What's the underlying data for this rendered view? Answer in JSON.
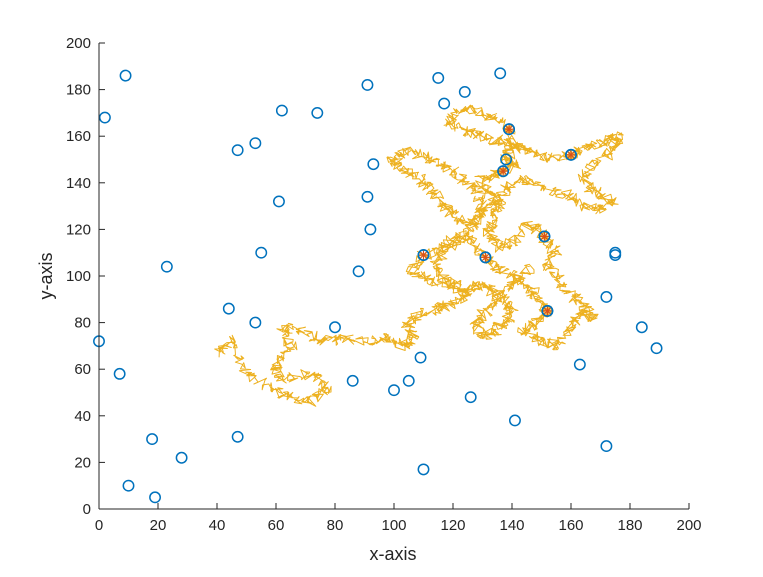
{
  "chart_data": {
    "type": "scatter",
    "xlabel": "x-axis",
    "ylabel": "y-axis",
    "xlim": [
      0,
      200
    ],
    "ylim": [
      0,
      200
    ],
    "xticks": [
      0,
      20,
      40,
      60,
      80,
      100,
      120,
      140,
      160,
      180,
      200
    ],
    "yticks": [
      0,
      20,
      40,
      60,
      80,
      100,
      120,
      140,
      160,
      180,
      200
    ],
    "grid": false,
    "colors": {
      "points": "#0072BD",
      "path": "#EDB120",
      "visited_marker": "#D95319",
      "axes": "#262626"
    },
    "points": [
      {
        "x": 2,
        "y": 168
      },
      {
        "x": 9,
        "y": 186
      },
      {
        "x": 0,
        "y": 72
      },
      {
        "x": 7,
        "y": 58
      },
      {
        "x": 10,
        "y": 10
      },
      {
        "x": 18,
        "y": 30
      },
      {
        "x": 19,
        "y": 5
      },
      {
        "x": 23,
        "y": 104
      },
      {
        "x": 28,
        "y": 22
      },
      {
        "x": 44,
        "y": 86
      },
      {
        "x": 47,
        "y": 31
      },
      {
        "x": 47,
        "y": 154
      },
      {
        "x": 53,
        "y": 157
      },
      {
        "x": 53,
        "y": 80
      },
      {
        "x": 55,
        "y": 110
      },
      {
        "x": 61,
        "y": 132
      },
      {
        "x": 62,
        "y": 171
      },
      {
        "x": 74,
        "y": 170
      },
      {
        "x": 80,
        "y": 78
      },
      {
        "x": 86,
        "y": 55
      },
      {
        "x": 88,
        "y": 102
      },
      {
        "x": 91,
        "y": 182
      },
      {
        "x": 91,
        "y": 134
      },
      {
        "x": 92,
        "y": 120
      },
      {
        "x": 93,
        "y": 148
      },
      {
        "x": 100,
        "y": 51
      },
      {
        "x": 105,
        "y": 55
      },
      {
        "x": 109,
        "y": 65
      },
      {
        "x": 110,
        "y": 17
      },
      {
        "x": 110,
        "y": 109
      },
      {
        "x": 115,
        "y": 185
      },
      {
        "x": 117,
        "y": 174
      },
      {
        "x": 124,
        "y": 179
      },
      {
        "x": 126,
        "y": 48
      },
      {
        "x": 131,
        "y": 108
      },
      {
        "x": 136,
        "y": 187
      },
      {
        "x": 137,
        "y": 145
      },
      {
        "x": 139,
        "y": 163
      },
      {
        "x": 138,
        "y": 150
      },
      {
        "x": 141,
        "y": 38
      },
      {
        "x": 151,
        "y": 117
      },
      {
        "x": 152,
        "y": 85
      },
      {
        "x": 160,
        "y": 152
      },
      {
        "x": 163,
        "y": 62
      },
      {
        "x": 172,
        "y": 27
      },
      {
        "x": 172,
        "y": 91
      },
      {
        "x": 175,
        "y": 109
      },
      {
        "x": 175,
        "y": 110
      },
      {
        "x": 184,
        "y": 78
      },
      {
        "x": 189,
        "y": 69
      }
    ],
    "visited": [
      {
        "x": 110,
        "y": 109
      },
      {
        "x": 131,
        "y": 108
      },
      {
        "x": 137,
        "y": 145
      },
      {
        "x": 139,
        "y": 163
      },
      {
        "x": 151,
        "y": 117
      },
      {
        "x": 152,
        "y": 85
      },
      {
        "x": 160,
        "y": 152
      }
    ],
    "path_waypoints": [
      [
        40,
        66
      ],
      [
        45,
        73
      ],
      [
        50,
        58
      ],
      [
        58,
        52
      ],
      [
        65,
        48
      ],
      [
        72,
        46
      ],
      [
        78,
        52
      ],
      [
        72,
        58
      ],
      [
        62,
        56
      ],
      [
        60,
        62
      ],
      [
        65,
        70
      ],
      [
        62,
        78
      ],
      [
        68,
        77
      ],
      [
        75,
        72
      ],
      [
        82,
        73
      ],
      [
        92,
        72
      ],
      [
        98,
        74
      ],
      [
        103,
        70
      ],
      [
        107,
        74
      ],
      [
        104,
        80
      ],
      [
        110,
        84
      ],
      [
        115,
        86
      ],
      [
        120,
        88
      ],
      [
        125,
        92
      ],
      [
        120,
        96
      ],
      [
        112,
        98
      ],
      [
        106,
        102
      ],
      [
        110,
        109
      ],
      [
        117,
        112
      ],
      [
        122,
        118
      ],
      [
        127,
        114
      ],
      [
        131,
        108
      ],
      [
        134,
        104
      ],
      [
        140,
        100
      ],
      [
        145,
        96
      ],
      [
        148,
        92
      ],
      [
        152,
        85
      ],
      [
        148,
        80
      ],
      [
        144,
        76
      ],
      [
        150,
        72
      ],
      [
        156,
        70
      ],
      [
        160,
        78
      ],
      [
        163,
        84
      ],
      [
        168,
        82
      ],
      [
        164,
        88
      ],
      [
        160,
        92
      ],
      [
        156,
        98
      ],
      [
        152,
        104
      ],
      [
        155,
        110
      ],
      [
        151,
        117
      ],
      [
        146,
        122
      ],
      [
        141,
        116
      ],
      [
        136,
        112
      ],
      [
        132,
        118
      ],
      [
        134,
        125
      ],
      [
        136,
        131
      ],
      [
        132,
        136
      ],
      [
        129,
        141
      ],
      [
        134,
        143
      ],
      [
        137,
        145
      ],
      [
        141,
        148
      ],
      [
        138,
        150
      ],
      [
        140,
        156
      ],
      [
        139,
        163
      ],
      [
        134,
        168
      ],
      [
        128,
        172
      ],
      [
        122,
        170
      ],
      [
        118,
        166
      ],
      [
        124,
        162
      ],
      [
        130,
        160
      ],
      [
        136,
        158
      ],
      [
        142,
        155
      ],
      [
        148,
        153
      ],
      [
        154,
        150
      ],
      [
        160,
        152
      ],
      [
        166,
        155
      ],
      [
        172,
        158
      ],
      [
        176,
        160
      ],
      [
        174,
        154
      ],
      [
        168,
        148
      ],
      [
        164,
        142
      ],
      [
        168,
        136
      ],
      [
        174,
        132
      ],
      [
        170,
        128
      ],
      [
        165,
        130
      ],
      [
        158,
        135
      ],
      [
        150,
        138
      ],
      [
        145,
        142
      ],
      [
        140,
        139
      ],
      [
        135,
        134
      ],
      [
        130,
        128
      ],
      [
        126,
        122
      ],
      [
        120,
        126
      ],
      [
        116,
        132
      ],
      [
        112,
        138
      ],
      [
        108,
        142
      ],
      [
        103,
        146
      ],
      [
        99,
        150
      ],
      [
        104,
        154
      ],
      [
        110,
        152
      ],
      [
        116,
        148
      ],
      [
        121,
        144
      ],
      [
        127,
        138
      ],
      [
        130,
        132
      ],
      [
        128,
        124
      ],
      [
        124,
        118
      ],
      [
        118,
        112
      ],
      [
        114,
        104
      ],
      [
        118,
        98
      ],
      [
        124,
        94
      ],
      [
        128,
        96
      ],
      [
        133,
        94
      ],
      [
        137,
        90
      ],
      [
        140,
        86
      ],
      [
        138,
        80
      ],
      [
        134,
        76
      ],
      [
        130,
        74
      ],
      [
        128,
        80
      ],
      [
        132,
        86
      ],
      [
        136,
        92
      ],
      [
        142,
        98
      ],
      [
        146,
        104
      ]
    ]
  }
}
